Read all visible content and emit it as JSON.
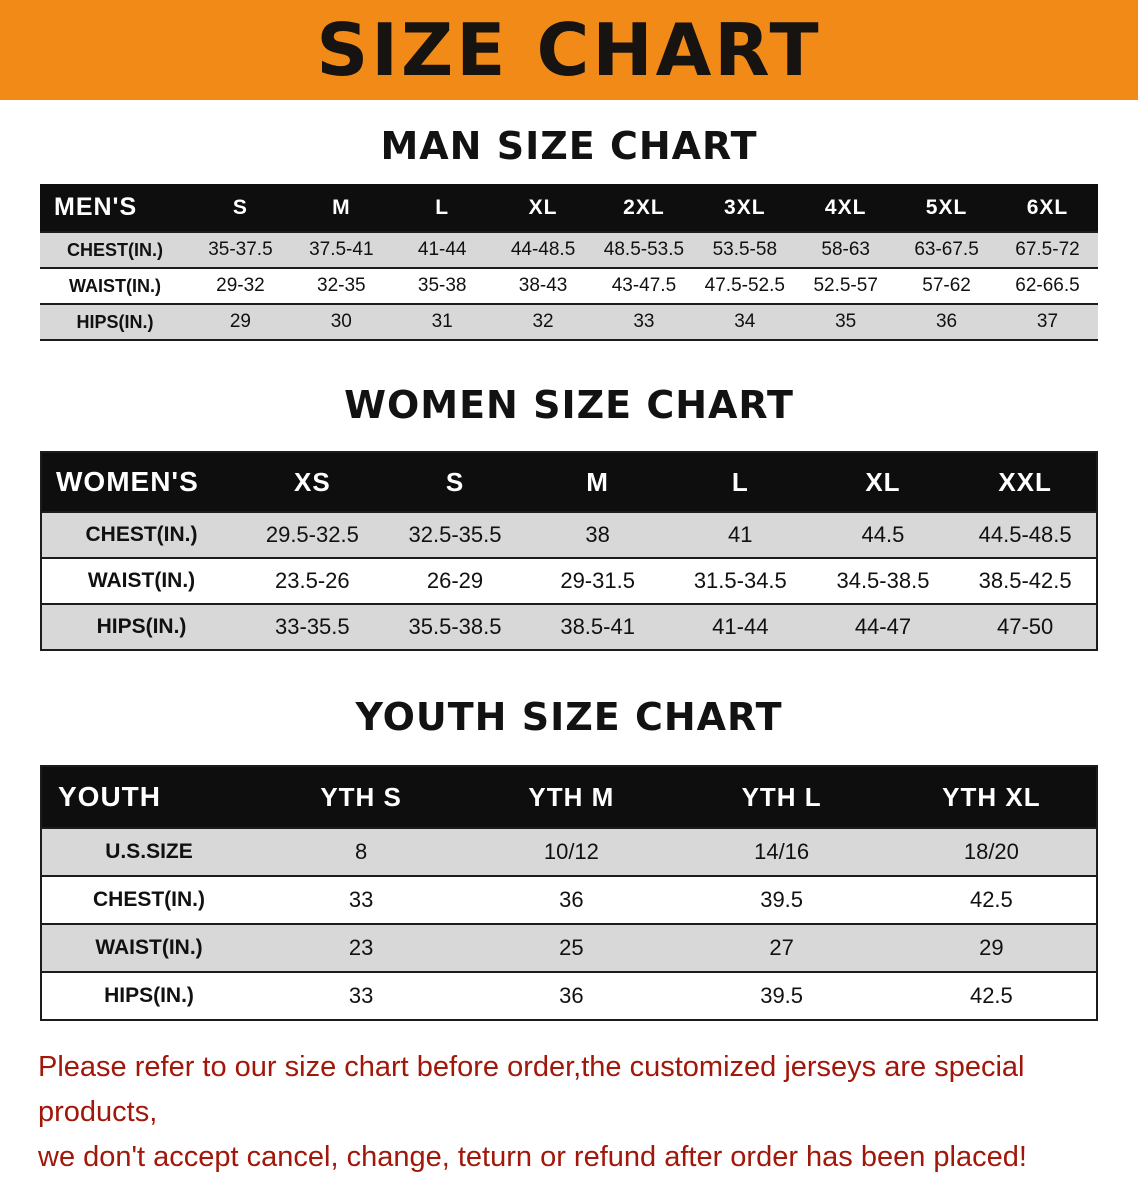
{
  "banner": {
    "title": "SIZE CHART"
  },
  "colors": {
    "banner_bg": "#f28a18",
    "table_header_bg": "#0e0e0e",
    "row_alt_bg": "#d8d8d8",
    "note_text": "#a1170a"
  },
  "men": {
    "heading": "MAN SIZE CHART",
    "header": [
      "MEN'S",
      "S",
      "M",
      "L",
      "XL",
      "2XL",
      "3XL",
      "4XL",
      "5XL",
      "6XL"
    ],
    "rows": [
      {
        "label": "CHEST(IN.)",
        "values": [
          "35-37.5",
          "37.5-41",
          "41-44",
          "44-48.5",
          "48.5-53.5",
          "53.5-58",
          "58-63",
          "63-67.5",
          "67.5-72"
        ]
      },
      {
        "label": "WAIST(IN.)",
        "values": [
          "29-32",
          "32-35",
          "35-38",
          "38-43",
          "43-47.5",
          "47.5-52.5",
          "52.5-57",
          "57-62",
          "62-66.5"
        ]
      },
      {
        "label": "HIPS(IN.)",
        "values": [
          "29",
          "30",
          "31",
          "32",
          "33",
          "34",
          "35",
          "36",
          "37"
        ]
      }
    ]
  },
  "women": {
    "heading": "WOMEN SIZE CHART",
    "header": [
      "WOMEN'S",
      "XS",
      "S",
      "M",
      "L",
      "XL",
      "XXL"
    ],
    "rows": [
      {
        "label": "CHEST(IN.)",
        "values": [
          "29.5-32.5",
          "32.5-35.5",
          "38",
          "41",
          "44.5",
          "44.5-48.5"
        ]
      },
      {
        "label": "WAIST(IN.)",
        "values": [
          "23.5-26",
          "26-29",
          "29-31.5",
          "31.5-34.5",
          "34.5-38.5",
          "38.5-42.5"
        ]
      },
      {
        "label": "HIPS(IN.)",
        "values": [
          "33-35.5",
          "35.5-38.5",
          "38.5-41",
          "41-44",
          "44-47",
          "47-50"
        ]
      }
    ]
  },
  "youth": {
    "heading": "YOUTH SIZE CHART",
    "header": [
      "YOUTH",
      "YTH S",
      "YTH M",
      "YTH L",
      "YTH XL"
    ],
    "rows": [
      {
        "label": "U.S.SIZE",
        "values": [
          "8",
          "10/12",
          "14/16",
          "18/20"
        ]
      },
      {
        "label": "CHEST(IN.)",
        "values": [
          "33",
          "36",
          "39.5",
          "42.5"
        ]
      },
      {
        "label": "WAIST(IN.)",
        "values": [
          "23",
          "25",
          "27",
          "29"
        ]
      },
      {
        "label": "HIPS(IN.)",
        "values": [
          "33",
          "36",
          "39.5",
          "42.5"
        ]
      }
    ]
  },
  "note": {
    "line1": "Please refer to our size chart before order,the customized jerseys are special products,",
    "line2": "we don't accept cancel, change, teturn or refund after order has been placed!"
  }
}
